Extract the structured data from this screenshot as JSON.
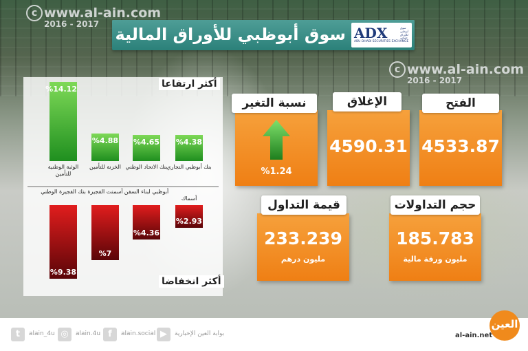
{
  "watermark": {
    "site": "www.al-ain.com",
    "years": "2016 - 2017",
    "copy": "c"
  },
  "title": "سوق أبوظبي للأوراق المالية",
  "logo": {
    "mark": "ADX",
    "sub": "ABU DHABI SECURITIES EXCHANGE",
    "ar": "سوق أبوظبي للأوراق المالية"
  },
  "gainers": {
    "label": "أكثر ارتفاعا",
    "items": [
      {
        "name": "الوثبة الوطنية للتأمين",
        "pct": "%14.12",
        "value": 14.12
      },
      {
        "name": "الخزنة للتأمين",
        "pct": "%4.88",
        "value": 4.88
      },
      {
        "name": "بنك الاتحاد الوطني",
        "pct": "%4.65",
        "value": 4.65
      },
      {
        "name": "بنك أبوظبي التجاري",
        "pct": "%4.38",
        "value": 4.38
      }
    ]
  },
  "losers": {
    "label": "أكثر انخفاضا",
    "items": [
      {
        "name": "بنك الفجيرة الوطني",
        "pct": "%9.38",
        "value": 9.38
      },
      {
        "name": "أسمنت الفجيرة",
        "pct": "%7",
        "value": 7
      },
      {
        "name": "أبوظبي لبناء السفن",
        "pct": "%4.36",
        "value": 4.36
      },
      {
        "name": "أسماك",
        "pct": "%2.93",
        "value": 2.93
      }
    ]
  },
  "cards": {
    "change": {
      "label": "نسبة التغير",
      "value": "%1.24",
      "direction": "up",
      "arrow_color": "#2e9c2e"
    },
    "close": {
      "label": "الإغلاق",
      "value": "4590.31"
    },
    "open": {
      "label": "الفتح",
      "value": "4533.87"
    },
    "turnover": {
      "label": "قيمة التداول",
      "value": "233.239",
      "unit": "مليون درهم"
    },
    "volume": {
      "label": "حجم التداولات",
      "value": "185.783",
      "unit": "مليون ورقة مالية"
    }
  },
  "footer": {
    "twitter": {
      "icon": "twitter-icon",
      "label": "alain_4u"
    },
    "instagram": {
      "icon": "instagram-icon",
      "label": "alain.4u"
    },
    "facebook": {
      "icon": "facebook-icon",
      "label": "alain.social"
    },
    "youtube": {
      "icon": "youtube-icon",
      "label": "بوابة العين الإخبارية"
    },
    "site": "al-ain.net",
    "logo": "العين"
  },
  "colors": {
    "accent": "#f0861a",
    "title_bar": "#2f8c84",
    "gain": "#33a833",
    "loss": "#c91414"
  }
}
